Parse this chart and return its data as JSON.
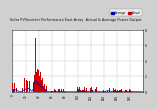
{
  "title": "Solar PV/Inverter Performance East Array  Actual & Average Power Output",
  "bg_color": "#d0d0d0",
  "plot_bg": "#ffffff",
  "grid_color": "#aaaaaa",
  "bar_color": "#cc0000",
  "line_color": "#0000bb",
  "avg_color": "#dd4444",
  "outer_bg": "#888888",
  "n_bars": 200,
  "ylim": [
    0,
    8
  ],
  "legend_actual": "Actual",
  "legend_avg": "Average"
}
